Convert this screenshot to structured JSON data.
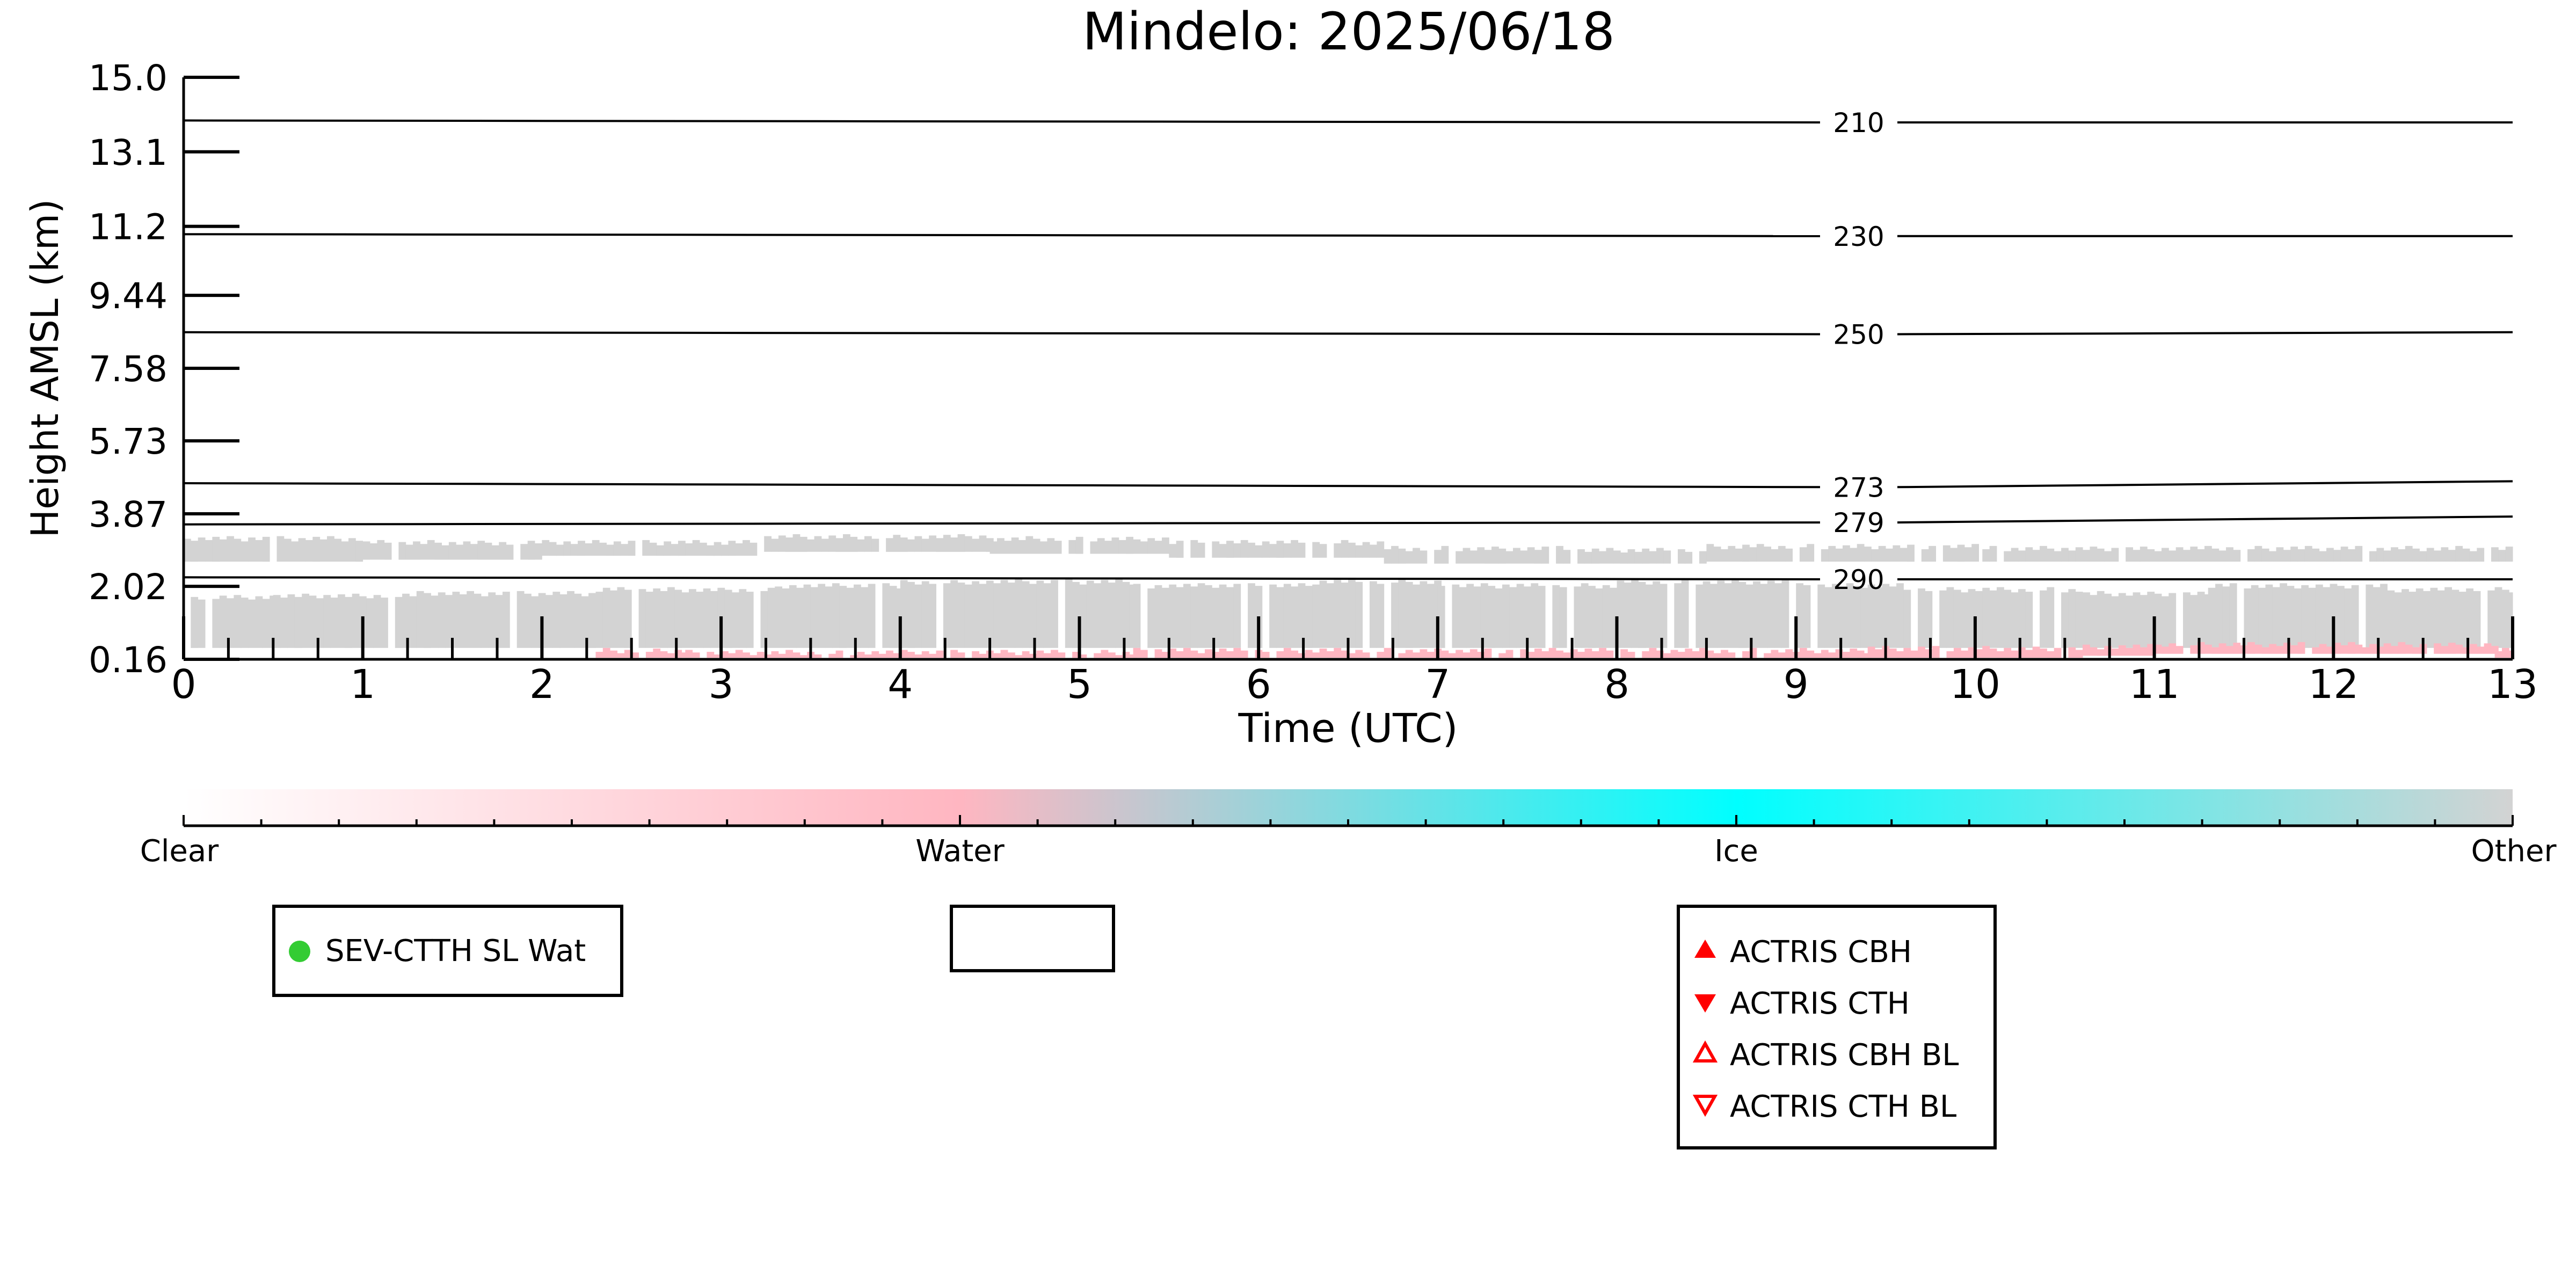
{
  "chart_data": {
    "type": "heatmap",
    "title": "Mindelo: 2025/06/18",
    "xlabel": "Time (UTC)",
    "ylabel": "Height AMSL (km)",
    "xlim": [
      0,
      13
    ],
    "ylim": [
      0.16,
      15.0
    ],
    "x_ticks": [
      "0",
      "1",
      "2",
      "3",
      "4",
      "5",
      "6",
      "7",
      "8",
      "9",
      "10",
      "11",
      "12",
      "13"
    ],
    "y_ticks": [
      {
        "label": "15.0",
        "value": 15.0
      },
      {
        "label": "13.1",
        "value": 13.1
      },
      {
        "label": "11.2",
        "value": 11.2
      },
      {
        "label": "9.44",
        "value": 9.44
      },
      {
        "label": "7.58",
        "value": 7.58
      },
      {
        "label": "5.73",
        "value": 5.73
      },
      {
        "label": "3.87",
        "value": 3.87
      },
      {
        "label": "2.02",
        "value": 2.02
      },
      {
        "label": "0.16",
        "value": 0.16
      }
    ],
    "temperature_contours": [
      {
        "label": "210",
        "heights": [
          [
            0,
            13.9
          ],
          [
            9.2,
            13.85
          ],
          [
            13,
            13.85
          ]
        ]
      },
      {
        "label": "230",
        "heights": [
          [
            0,
            11.0
          ],
          [
            9.2,
            10.95
          ],
          [
            13,
            10.95
          ]
        ]
      },
      {
        "label": "250",
        "heights": [
          [
            0,
            8.5
          ],
          [
            9.2,
            8.45
          ],
          [
            13,
            8.5
          ]
        ]
      },
      {
        "label": "273",
        "heights": [
          [
            0,
            4.65
          ],
          [
            9.2,
            4.55
          ],
          [
            13,
            4.7
          ]
        ]
      },
      {
        "label": "279",
        "heights": [
          [
            0,
            3.6
          ],
          [
            9.2,
            3.65
          ],
          [
            13,
            3.8
          ]
        ]
      },
      {
        "label": "290",
        "heights": [
          [
            0,
            2.25
          ],
          [
            9.2,
            2.2
          ],
          [
            13,
            2.2
          ]
        ]
      }
    ],
    "cloud_layers": [
      {
        "class": "Other",
        "color": "#d3d3d3",
        "segments": [
          [
            0.0,
            0.45,
            1.8
          ],
          [
            0.5,
            0.45,
            1.85
          ],
          [
            1.3,
            0.45,
            1.9
          ],
          [
            2.3,
            0.45,
            2.0
          ],
          [
            3.3,
            0.45,
            2.1
          ],
          [
            4.0,
            0.45,
            2.2
          ],
          [
            5.3,
            0.45,
            2.1
          ],
          [
            6.3,
            0.45,
            2.2
          ],
          [
            7.0,
            0.45,
            2.1
          ],
          [
            8.0,
            0.45,
            2.2
          ],
          [
            9.0,
            0.45,
            2.1
          ],
          [
            9.6,
            0.45,
            2.0
          ],
          [
            10.6,
            0.45,
            1.9
          ],
          [
            11.3,
            0.45,
            2.1
          ],
          [
            12.3,
            0.45,
            2.0
          ]
        ]
      },
      {
        "class": "Other",
        "color": "#d3d3d3",
        "segments": [
          [
            0.0,
            2.65,
            3.3
          ],
          [
            1.0,
            2.7,
            3.2
          ],
          [
            2.0,
            2.8,
            3.2
          ],
          [
            3.2,
            2.9,
            3.35
          ],
          [
            4.5,
            2.85,
            3.3
          ],
          [
            5.5,
            2.75,
            3.2
          ],
          [
            6.7,
            2.6,
            3.05
          ],
          [
            7.7,
            2.6,
            3.0
          ],
          [
            8.5,
            2.65,
            3.1
          ],
          [
            10.0,
            2.65,
            3.05
          ]
        ]
      },
      {
        "class": "Water",
        "color": "#ffb6c1",
        "segments": [
          [
            2.3,
            0.2,
            0.45
          ],
          [
            2.8,
            0.2,
            0.4
          ],
          [
            5.3,
            0.2,
            0.45
          ],
          [
            9.4,
            0.2,
            0.5
          ],
          [
            10.2,
            0.2,
            0.5
          ],
          [
            10.6,
            0.25,
            0.55
          ],
          [
            11.0,
            0.3,
            0.6
          ],
          [
            12.9,
            0.2,
            0.5
          ]
        ]
      }
    ],
    "colorbar": {
      "labels": [
        "Clear",
        "Water",
        "Ice",
        "Other"
      ],
      "stops": [
        "#ffffff",
        "#ffb6c1",
        "#00ffff",
        "#d3d3d3"
      ]
    },
    "legends": [
      {
        "entries": [
          {
            "label": "SEV-CTTH SL Wat",
            "marker": "circle-filled",
            "color": "#33cc33"
          }
        ]
      },
      {
        "entries": []
      },
      {
        "entries": [
          {
            "label": "ACTRIS CBH",
            "marker": "triangle-up-filled",
            "color": "#ff0000"
          },
          {
            "label": "ACTRIS CTH",
            "marker": "triangle-down-filled",
            "color": "#ff0000"
          },
          {
            "label": "ACTRIS CBH BL",
            "marker": "triangle-up-open",
            "color": "#ff0000"
          },
          {
            "label": "ACTRIS CTH BL",
            "marker": "triangle-down-open",
            "color": "#ff0000"
          }
        ]
      }
    ]
  }
}
